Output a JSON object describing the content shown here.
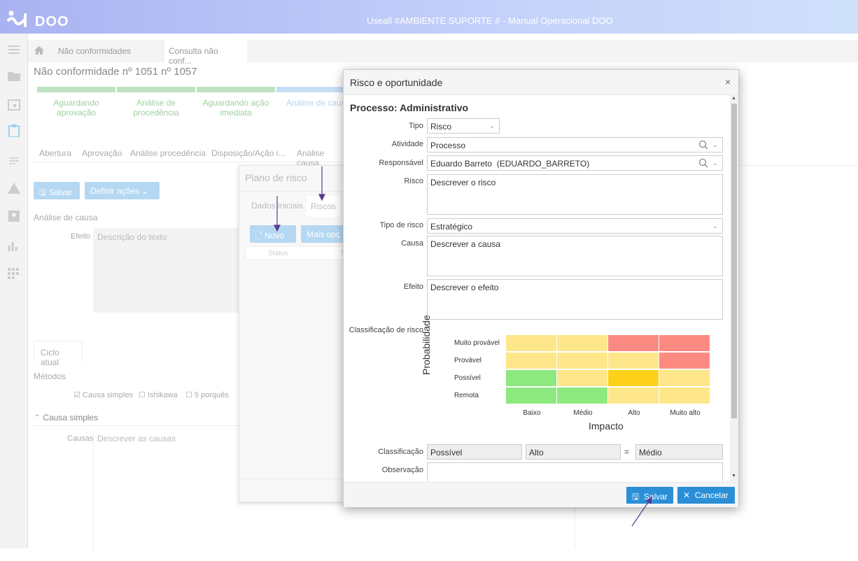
{
  "app": {
    "logo": "DOO",
    "title": "Useall #AMBIENTE SUPORTE # - Manual Operacional DOO"
  },
  "breadcrumb": {
    "item1": "Não conformidades",
    "item2": "Consulta não conf..."
  },
  "page": {
    "title": "Não conformidade nº 1051 nº 1057",
    "steps": [
      "Aguardando aprovação",
      "Análise de procedência",
      "Aguardando ação imediata",
      "Análise de causa"
    ],
    "tabs": [
      "Abertura",
      "Aprovação",
      "Análise procedência",
      "Disposição/Ação i...",
      "Análise causa"
    ],
    "save_btn": "Salvar",
    "actions_btn": "Definir ações",
    "section_cause": "Análise de causa",
    "efeito_label": "Efeito",
    "efeito_placeholder": "Descrição do texto",
    "ciclo_tab": "Ciclo atual",
    "metodos": "Métodos",
    "metodos_opts": [
      "Causa simples",
      "Ishikawa",
      "5 porquês"
    ],
    "causa_simples": "Causa simples",
    "causas_label": "Causas",
    "causas_placeholder": "Descrever as causas"
  },
  "plano": {
    "title": "Plano de risco",
    "tabs": [
      "Dados iniciais",
      "Riscos"
    ],
    "new_btn": "Novo",
    "more_btn": "Mais opç",
    "col_status": "Status",
    "col_t": "T"
  },
  "modal": {
    "title": "Risco e oportunidade",
    "close": "×",
    "process": "Processo: Administrativo",
    "fields": {
      "tipo": {
        "label": "Tipo",
        "value": "Risco"
      },
      "atividade": {
        "label": "Atividade",
        "value": "Processo"
      },
      "responsavel": {
        "label": "Responsável",
        "value": "Eduardo Barreto  (EDUARDO_BARRETO)"
      },
      "risco": {
        "label": "Risco",
        "value": "Descrever o risco"
      },
      "tipo_risco": {
        "label": "Tipo de risco",
        "value": "Estratégico"
      },
      "causa": {
        "label": "Causa",
        "value": "Descrever a causa"
      },
      "efeito": {
        "label": "Efeito",
        "value": "Descrever o efeito"
      },
      "classificacao_risco": {
        "label": "Classificação de risco"
      },
      "classificacao": {
        "label": "Classificação",
        "prob": "Possível",
        "impact": "Alto",
        "eq": "=",
        "result": "Médio"
      },
      "observacao": {
        "label": "Observação"
      }
    },
    "matrix": {
      "y_title": "Probabilidade",
      "x_title": "Impacto",
      "rows": [
        "Muito provável",
        "Provável",
        "Possível",
        "Remota"
      ],
      "cols": [
        "Baixo",
        "Médio",
        "Alto",
        "Muito alto"
      ],
      "colors": {
        "green": "#8ee880",
        "yellow": "#fde78a",
        "red": "#fd8a82",
        "selected": "#fcd117"
      },
      "cells": [
        [
          "yellow",
          "yellow",
          "red",
          "red"
        ],
        [
          "yellow",
          "yellow",
          "yellow",
          "red"
        ],
        [
          "green",
          "yellow",
          "selected",
          "yellow"
        ],
        [
          "green",
          "green",
          "yellow",
          "yellow"
        ]
      ]
    },
    "save_btn": "Salvar",
    "cancel_btn": "Cancelar"
  }
}
